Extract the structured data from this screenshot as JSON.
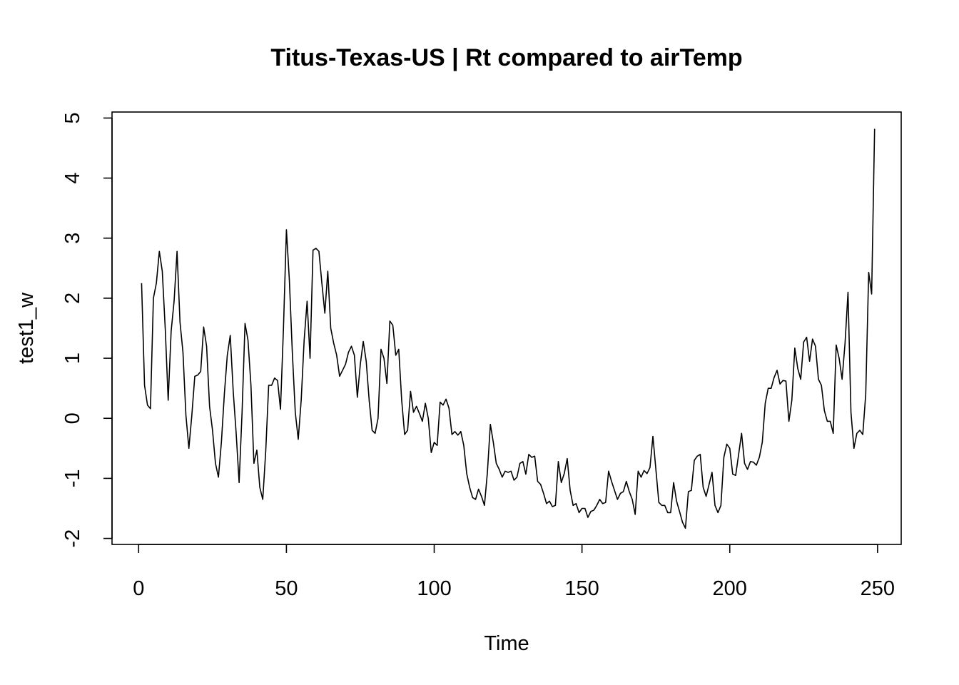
{
  "chart_data": {
    "type": "line",
    "title": "Titus-Texas-US | Rt compared to airTemp",
    "xlabel": "Time",
    "ylabel": "test1_w",
    "xlim": [
      -9,
      258
    ],
    "ylim": [
      -2.1,
      5.1
    ],
    "xticks": [
      0,
      50,
      100,
      150,
      200,
      250
    ],
    "xtick_labels": [
      "0",
      "50",
      "100",
      "150",
      "200",
      "250"
    ],
    "yticks": [
      -2,
      -1,
      0,
      1,
      2,
      3,
      4,
      5
    ],
    "ytick_labels": [
      "-2",
      "-1",
      "0",
      "1",
      "2",
      "3",
      "4",
      "5"
    ],
    "grid": false,
    "series": [
      {
        "x_start": 1,
        "x_step": 1,
        "values": [
          2.25,
          0.55,
          0.22,
          0.16,
          2.0,
          2.25,
          2.78,
          2.45,
          1.5,
          0.3,
          1.45,
          1.95,
          2.78,
          1.6,
          1.1,
          0.05,
          -0.5,
          0.05,
          0.7,
          0.72,
          0.78,
          1.52,
          1.2,
          0.2,
          -0.2,
          -0.75,
          -0.98,
          -0.4,
          0.4,
          1.05,
          1.38,
          0.45,
          -0.25,
          -1.07,
          0.1,
          1.58,
          1.3,
          0.55,
          -0.75,
          -0.53,
          -1.15,
          -1.35,
          -0.55,
          0.55,
          0.55,
          0.67,
          0.63,
          0.15,
          1.5,
          3.14,
          2.3,
          1.1,
          0.1,
          -0.35,
          0.3,
          1.3,
          1.95,
          1.0,
          2.8,
          2.83,
          2.78,
          2.25,
          1.75,
          2.45,
          1.5,
          1.25,
          1.05,
          0.7,
          0.8,
          0.9,
          1.1,
          1.2,
          1.05,
          0.35,
          0.9,
          1.28,
          0.95,
          0.3,
          -0.2,
          -0.25,
          0.0,
          1.15,
          1.0,
          0.58,
          1.62,
          1.55,
          1.05,
          1.15,
          0.3,
          -0.27,
          -0.2,
          0.45,
          0.1,
          0.2,
          0.08,
          -0.05,
          0.25,
          0.0,
          -0.57,
          -0.4,
          -0.45,
          0.27,
          0.22,
          0.32,
          0.17,
          -0.27,
          -0.22,
          -0.28,
          -0.22,
          -0.45,
          -0.92,
          -1.15,
          -1.32,
          -1.35,
          -1.18,
          -1.3,
          -1.45,
          -0.9,
          -0.1,
          -0.4,
          -0.75,
          -0.85,
          -0.98,
          -0.88,
          -0.9,
          -0.88,
          -1.03,
          -0.98,
          -0.75,
          -0.72,
          -0.93,
          -0.6,
          -0.65,
          -0.63,
          -1.05,
          -1.1,
          -1.25,
          -1.42,
          -1.38,
          -1.47,
          -1.45,
          -0.72,
          -1.07,
          -0.92,
          -0.67,
          -1.2,
          -1.45,
          -1.42,
          -1.57,
          -1.5,
          -1.5,
          -1.65,
          -1.55,
          -1.53,
          -1.45,
          -1.35,
          -1.42,
          -1.4,
          -0.88,
          -1.05,
          -1.2,
          -1.35,
          -1.25,
          -1.22,
          -1.05,
          -1.22,
          -1.35,
          -1.6,
          -0.88,
          -0.98,
          -0.87,
          -0.92,
          -0.82,
          -0.3,
          -0.85,
          -1.4,
          -1.45,
          -1.45,
          -1.57,
          -1.57,
          -1.07,
          -1.38,
          -1.55,
          -1.73,
          -1.83,
          -1.22,
          -1.2,
          -0.7,
          -0.63,
          -0.6,
          -1.15,
          -1.3,
          -1.1,
          -0.9,
          -1.45,
          -1.57,
          -1.45,
          -0.65,
          -0.43,
          -0.5,
          -0.93,
          -0.95,
          -0.6,
          -0.25,
          -0.75,
          -0.85,
          -0.72,
          -0.73,
          -0.78,
          -0.65,
          -0.4,
          0.25,
          0.5,
          0.5,
          0.68,
          0.8,
          0.57,
          0.63,
          0.62,
          -0.05,
          0.3,
          1.17,
          0.83,
          0.65,
          1.27,
          1.35,
          0.95,
          1.32,
          1.2,
          0.65,
          0.55,
          0.13,
          -0.05,
          -0.05,
          -0.25,
          1.22,
          1.0,
          0.65,
          1.25,
          2.1,
          0.1,
          -0.5,
          -0.25,
          -0.2,
          -0.27,
          0.4,
          2.43,
          2.07,
          4.82
        ]
      }
    ]
  }
}
